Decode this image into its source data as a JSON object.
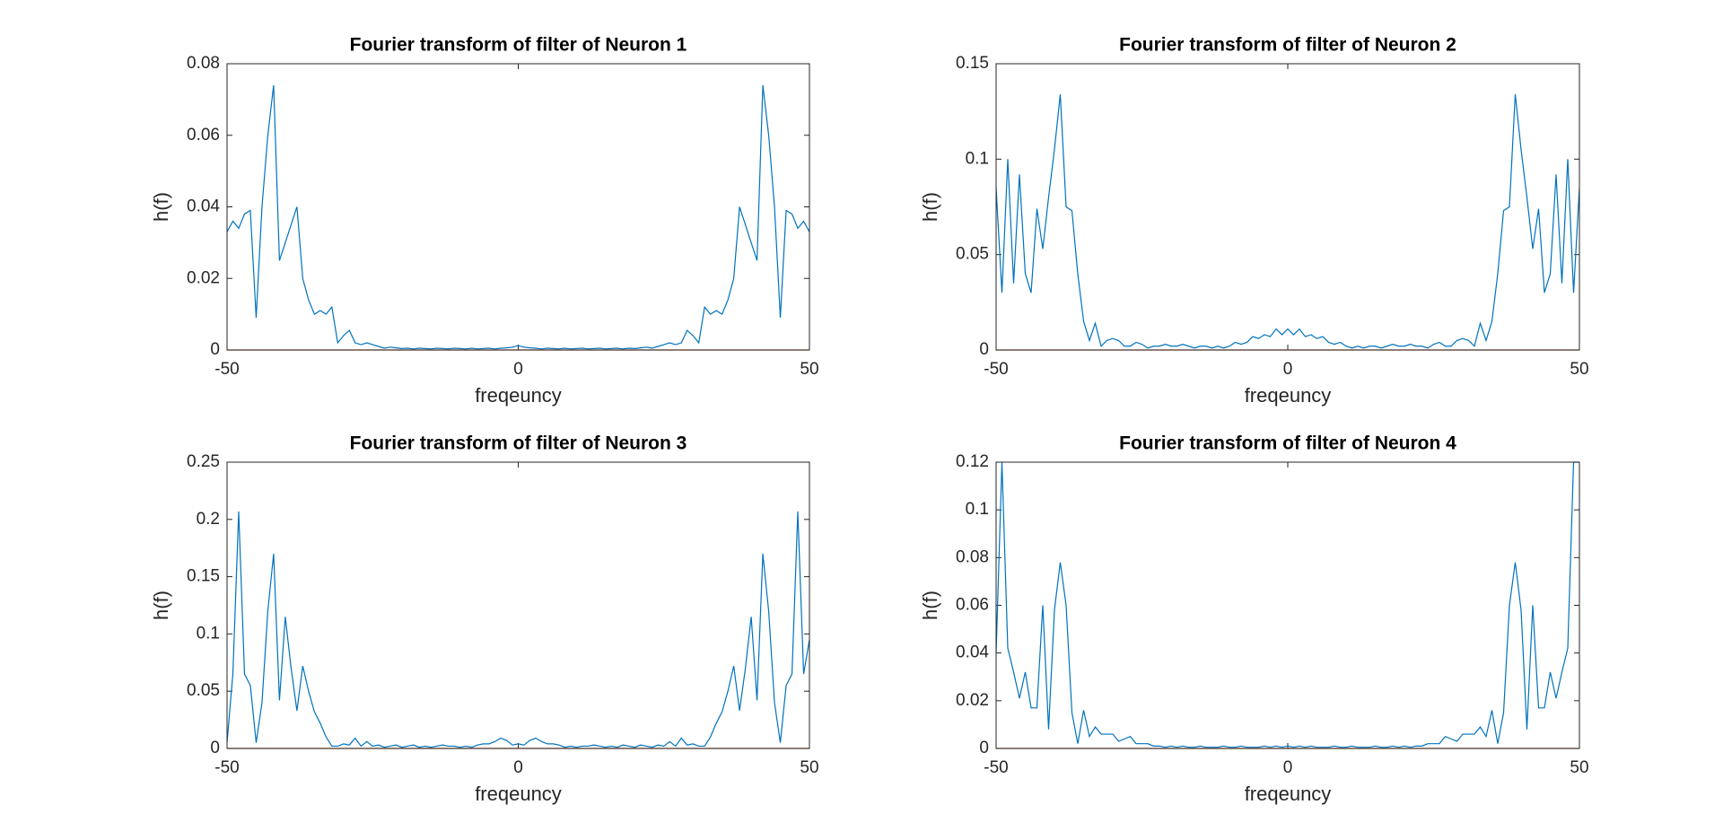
{
  "chart_data": [
    {
      "type": "line",
      "title": "Fourier transform of filter of Neuron 1",
      "xlabel": "freqeuncy",
      "ylabel": "h(f)",
      "x": [
        -50,
        -49,
        -48,
        -47,
        -46,
        -45,
        -44,
        -43,
        -42,
        -41,
        -40,
        -39,
        -38,
        -37,
        -36,
        -35,
        -34,
        -33,
        -32,
        -31,
        -30,
        -29,
        -28,
        -27,
        -26,
        -25,
        -24,
        -23,
        -22,
        -21,
        -20,
        -19,
        -18,
        -17,
        -16,
        -15,
        -14,
        -13,
        -12,
        -11,
        -10,
        -9,
        -8,
        -7,
        -6,
        -5,
        -4,
        -3,
        -2,
        -1,
        0,
        1,
        2,
        3,
        4,
        5,
        6,
        7,
        8,
        9,
        10,
        11,
        12,
        13,
        14,
        15,
        16,
        17,
        18,
        19,
        20,
        21,
        22,
        23,
        24,
        25,
        26,
        27,
        28,
        29,
        30,
        31,
        32,
        33,
        34,
        35,
        36,
        37,
        38,
        39,
        40,
        41,
        42,
        43,
        44,
        45,
        46,
        47,
        48,
        49,
        50
      ],
      "series": [
        {
          "color": "#0072bd",
          "values": [
            0.033,
            0.036,
            0.034,
            0.038,
            0.039,
            0.009,
            0.04,
            0.06,
            0.074,
            0.025,
            0.03,
            0.035,
            0.04,
            0.02,
            0.014,
            0.01,
            0.011,
            0.01,
            0.012,
            0.002,
            0.004,
            0.0055,
            0.002,
            0.0015,
            0.002,
            0.0015,
            0.001,
            0.0005,
            0.0008,
            0.0006,
            0.0004,
            0.0005,
            0.0003,
            0.0005,
            0.0004,
            0.0003,
            0.0005,
            0.0004,
            0.0003,
            0.0005,
            0.0004,
            0.0003,
            0.0005,
            0.0003,
            0.0004,
            0.0005,
            0.0003,
            0.0005,
            0.0006,
            0.0008,
            0.0012,
            0.0008,
            0.0006,
            0.0005,
            0.0003,
            0.0005,
            0.0004,
            0.0003,
            0.0005,
            0.0003,
            0.0004,
            0.0005,
            0.0003,
            0.0004,
            0.0005,
            0.0003,
            0.0004,
            0.0005,
            0.0003,
            0.0005,
            0.0004,
            0.0006,
            0.0008,
            0.0005,
            0.001,
            0.0015,
            0.002,
            0.0015,
            0.002,
            0.0055,
            0.004,
            0.002,
            0.012,
            0.01,
            0.011,
            0.01,
            0.014,
            0.02,
            0.04,
            0.035,
            0.03,
            0.025,
            0.074,
            0.06,
            0.04,
            0.009,
            0.039,
            0.038,
            0.034,
            0.036,
            0.033
          ]
        },
        {
          "color": "#d95319",
          "x": [
            -50,
            50
          ],
          "values": [
            0,
            0
          ]
        }
      ],
      "xlim": [
        -50,
        50
      ],
      "xticks": [
        -50,
        0,
        50
      ],
      "ylim": [
        0,
        0.08
      ],
      "yticks": [
        0,
        0.02,
        0.04,
        0.06,
        0.08
      ]
    },
    {
      "type": "line",
      "title": "Fourier transform of filter of Neuron 2",
      "xlabel": "freqeuncy",
      "ylabel": "h(f)",
      "x": [
        -50,
        -49,
        -48,
        -47,
        -46,
        -45,
        -44,
        -43,
        -42,
        -41,
        -40,
        -39,
        -38,
        -37,
        -36,
        -35,
        -34,
        -33,
        -32,
        -31,
        -30,
        -29,
        -28,
        -27,
        -26,
        -25,
        -24,
        -23,
        -22,
        -21,
        -20,
        -19,
        -18,
        -17,
        -16,
        -15,
        -14,
        -13,
        -12,
        -11,
        -10,
        -9,
        -8,
        -7,
        -6,
        -5,
        -4,
        -3,
        -2,
        -1,
        0,
        1,
        2,
        3,
        4,
        5,
        6,
        7,
        8,
        9,
        10,
        11,
        12,
        13,
        14,
        15,
        16,
        17,
        18,
        19,
        20,
        21,
        22,
        23,
        24,
        25,
        26,
        27,
        28,
        29,
        30,
        31,
        32,
        33,
        34,
        35,
        36,
        37,
        38,
        39,
        40,
        41,
        42,
        43,
        44,
        45,
        46,
        47,
        48,
        49,
        50
      ],
      "series": [
        {
          "color": "#0072bd",
          "values": [
            0.085,
            0.03,
            0.1,
            0.035,
            0.092,
            0.04,
            0.03,
            0.074,
            0.053,
            0.08,
            0.105,
            0.134,
            0.075,
            0.073,
            0.04,
            0.015,
            0.005,
            0.014,
            0.002,
            0.005,
            0.006,
            0.005,
            0.002,
            0.002,
            0.004,
            0.003,
            0.001,
            0.002,
            0.002,
            0.003,
            0.002,
            0.002,
            0.003,
            0.002,
            0.001,
            0.002,
            0.002,
            0.001,
            0.002,
            0.001,
            0.002,
            0.004,
            0.003,
            0.004,
            0.007,
            0.006,
            0.008,
            0.007,
            0.011,
            0.008,
            0.011,
            0.008,
            0.011,
            0.007,
            0.008,
            0.006,
            0.007,
            0.004,
            0.003,
            0.004,
            0.002,
            0.001,
            0.002,
            0.001,
            0.002,
            0.002,
            0.001,
            0.002,
            0.003,
            0.002,
            0.002,
            0.003,
            0.002,
            0.002,
            0.001,
            0.003,
            0.004,
            0.002,
            0.002,
            0.005,
            0.006,
            0.005,
            0.002,
            0.014,
            0.005,
            0.015,
            0.04,
            0.073,
            0.075,
            0.134,
            0.105,
            0.08,
            0.053,
            0.074,
            0.03,
            0.04,
            0.092,
            0.035,
            0.1,
            0.03,
            0.085
          ]
        },
        {
          "color": "#d95319",
          "x": [
            -50,
            50
          ],
          "values": [
            0,
            0
          ]
        }
      ],
      "xlim": [
        -50,
        50
      ],
      "xticks": [
        -50,
        0,
        50
      ],
      "ylim": [
        0,
        0.15
      ],
      "yticks": [
        0,
        0.05,
        0.1,
        0.15
      ]
    },
    {
      "type": "line",
      "title": "Fourier transform of filter of Neuron 3",
      "xlabel": "freqeuncy",
      "ylabel": "h(f)",
      "x": [
        -50,
        -49,
        -48,
        -47,
        -46,
        -45,
        -44,
        -43,
        -42,
        -41,
        -40,
        -39,
        -38,
        -37,
        -36,
        -35,
        -34,
        -33,
        -32,
        -31,
        -30,
        -29,
        -28,
        -27,
        -26,
        -25,
        -24,
        -23,
        -22,
        -21,
        -20,
        -19,
        -18,
        -17,
        -16,
        -15,
        -14,
        -13,
        -12,
        -11,
        -10,
        -9,
        -8,
        -7,
        -6,
        -5,
        -4,
        -3,
        -2,
        -1,
        0,
        1,
        2,
        3,
        4,
        5,
        6,
        7,
        8,
        9,
        10,
        11,
        12,
        13,
        14,
        15,
        16,
        17,
        18,
        19,
        20,
        21,
        22,
        23,
        24,
        25,
        26,
        27,
        28,
        29,
        30,
        31,
        32,
        33,
        34,
        35,
        36,
        37,
        38,
        39,
        40,
        41,
        42,
        43,
        44,
        45,
        46,
        47,
        48,
        49,
        50
      ],
      "series": [
        {
          "color": "#0072bd",
          "values": [
            0.005,
            0.065,
            0.207,
            0.065,
            0.055,
            0.005,
            0.04,
            0.12,
            0.17,
            0.042,
            0.115,
            0.07,
            0.033,
            0.072,
            0.05,
            0.032,
            0.022,
            0.01,
            0.002,
            0.002,
            0.004,
            0.003,
            0.009,
            0.002,
            0.006,
            0.002,
            0.003,
            0.001,
            0.002,
            0.003,
            0.001,
            0.002,
            0.003,
            0.001,
            0.002,
            0.001,
            0.002,
            0.003,
            0.002,
            0.002,
            0.001,
            0.002,
            0.001,
            0.003,
            0.004,
            0.004,
            0.006,
            0.009,
            0.007,
            0.003,
            0.004,
            0.003,
            0.007,
            0.009,
            0.006,
            0.004,
            0.004,
            0.003,
            0.001,
            0.002,
            0.001,
            0.002,
            0.002,
            0.003,
            0.002,
            0.001,
            0.002,
            0.001,
            0.003,
            0.002,
            0.001,
            0.003,
            0.002,
            0.001,
            0.003,
            0.002,
            0.006,
            0.002,
            0.009,
            0.003,
            0.004,
            0.002,
            0.002,
            0.01,
            0.022,
            0.032,
            0.05,
            0.072,
            0.033,
            0.07,
            0.115,
            0.042,
            0.17,
            0.12,
            0.04,
            0.005,
            0.055,
            0.065,
            0.207,
            0.065,
            0.095
          ]
        },
        {
          "color": "#d95319",
          "x": [
            -50,
            50
          ],
          "values": [
            0,
            0
          ]
        }
      ],
      "xlim": [
        -50,
        50
      ],
      "xticks": [
        -50,
        0,
        50
      ],
      "ylim": [
        0,
        0.25
      ],
      "yticks": [
        0,
        0.05,
        0.1,
        0.15,
        0.2,
        0.25
      ]
    },
    {
      "type": "line",
      "title": "Fourier transform of filter of Neuron 4",
      "xlabel": "freqeuncy",
      "ylabel": "h(f)",
      "x": [
        -50,
        -49,
        -48,
        -47,
        -46,
        -45,
        -44,
        -43,
        -42,
        -41,
        -40,
        -39,
        -38,
        -37,
        -36,
        -35,
        -34,
        -33,
        -32,
        -31,
        -30,
        -29,
        -28,
        -27,
        -26,
        -25,
        -24,
        -23,
        -22,
        -21,
        -20,
        -19,
        -18,
        -17,
        -16,
        -15,
        -14,
        -13,
        -12,
        -11,
        -10,
        -9,
        -8,
        -7,
        -6,
        -5,
        -4,
        -3,
        -2,
        -1,
        0,
        1,
        2,
        3,
        4,
        5,
        6,
        7,
        8,
        9,
        10,
        11,
        12,
        13,
        14,
        15,
        16,
        17,
        18,
        19,
        20,
        21,
        22,
        23,
        24,
        25,
        26,
        27,
        28,
        29,
        30,
        31,
        32,
        33,
        34,
        35,
        36,
        37,
        38,
        39,
        40,
        41,
        42,
        43,
        44,
        45,
        46,
        47,
        48,
        49,
        50
      ],
      "series": [
        {
          "color": "#0072bd",
          "values": [
            0.04,
            0.12,
            0.042,
            0.032,
            0.021,
            0.032,
            0.017,
            0.017,
            0.06,
            0.008,
            0.058,
            0.078,
            0.06,
            0.015,
            0.002,
            0.016,
            0.005,
            0.009,
            0.006,
            0.006,
            0.006,
            0.003,
            0.004,
            0.005,
            0.002,
            0.002,
            0.002,
            0.001,
            0.001,
            0.0005,
            0.001,
            0.0005,
            0.001,
            0.0005,
            0.0005,
            0.001,
            0.0005,
            0.0005,
            0.0005,
            0.001,
            0.0005,
            0.0005,
            0.001,
            0.0005,
            0.0005,
            0.0005,
            0.001,
            0.0005,
            0.001,
            0.0005,
            0.001,
            0.0005,
            0.001,
            0.0005,
            0.001,
            0.0005,
            0.0005,
            0.0005,
            0.001,
            0.0005,
            0.0005,
            0.001,
            0.0005,
            0.0005,
            0.0005,
            0.001,
            0.0005,
            0.0005,
            0.001,
            0.0005,
            0.001,
            0.0005,
            0.001,
            0.001,
            0.002,
            0.002,
            0.002,
            0.005,
            0.004,
            0.003,
            0.006,
            0.006,
            0.006,
            0.009,
            0.005,
            0.016,
            0.002,
            0.015,
            0.06,
            0.078,
            0.058,
            0.008,
            0.06,
            0.017,
            0.017,
            0.032,
            0.021,
            0.032,
            0.042,
            0.12,
            0.12
          ]
        },
        {
          "color": "#d95319",
          "x": [
            -50,
            50
          ],
          "values": [
            0,
            0
          ]
        }
      ],
      "xlim": [
        -50,
        50
      ],
      "xticks": [
        -50,
        0,
        50
      ],
      "ylim": [
        0,
        0.12
      ],
      "yticks": [
        0,
        0.02,
        0.04,
        0.06,
        0.08,
        0.1,
        0.12
      ]
    }
  ]
}
